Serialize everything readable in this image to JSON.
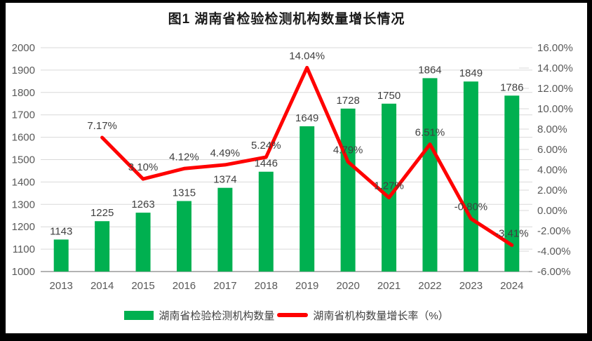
{
  "title": "图1 湖南省检验检测机构数量增长情况",
  "legend": {
    "bars_label": "湖南省检验检测机构数量",
    "line_label": "湖南省机构数量增长率（%）"
  },
  "colors": {
    "bar": "#00B050",
    "line": "#FF0000",
    "grid": "#D9D9D9",
    "axis_line": "#B3B3B3",
    "axis_text": "#595959",
    "data_label": "#404040",
    "title_text": "#1A1A1A",
    "frame": "#000000",
    "background": "#FFFFFF"
  },
  "chart_data": {
    "type": "combo",
    "title": "图1 湖南省检验检测机构数量增长情况",
    "categories": [
      "2013",
      "2014",
      "2015",
      "2016",
      "2017",
      "2018",
      "2019",
      "2020",
      "2021",
      "2022",
      "2023",
      "2024"
    ],
    "series": [
      {
        "name": "湖南省检验检测机构数量",
        "type": "bar",
        "axis": "left",
        "values": [
          1143,
          1225,
          1263,
          1315,
          1374,
          1446,
          1649,
          1728,
          1750,
          1864,
          1849,
          1786
        ],
        "data_labels": [
          "1143",
          "1225",
          "1263",
          "1315",
          "1374",
          "1446",
          "1649",
          "1728",
          "1750",
          "1864",
          "1849",
          "1786"
        ]
      },
      {
        "name": "湖南省机构数量增长率（%）",
        "type": "line",
        "axis": "right",
        "values": [
          null,
          7.17,
          3.1,
          4.12,
          4.49,
          5.24,
          14.04,
          4.79,
          1.27,
          6.51,
          -0.8,
          -3.41
        ],
        "data_labels": [
          null,
          "7.17%",
          "3.10%",
          "4.12%",
          "4.49%",
          "5.24%",
          "14.04%",
          "4.79%",
          "1.27%",
          "6.51%",
          "-0.80%",
          "-3.41%"
        ]
      }
    ],
    "left_axis": {
      "min": 1000,
      "max": 2000,
      "step": 100,
      "tick_labels": [
        "2000",
        "1900",
        "1800",
        "1700",
        "1600",
        "1500",
        "1400",
        "1300",
        "1200",
        "1100",
        "1000"
      ]
    },
    "right_axis": {
      "min": -6,
      "max": 16,
      "step": 2,
      "tick_labels": [
        "16.00%",
        "14.00%",
        "12.00%",
        "10.00%",
        "8.00%",
        "6.00%",
        "4.00%",
        "2.00%",
        "0.00%",
        "-2.00%",
        "-4.00%",
        "-6.00%"
      ]
    },
    "grid": true,
    "legend_position": "bottom"
  }
}
